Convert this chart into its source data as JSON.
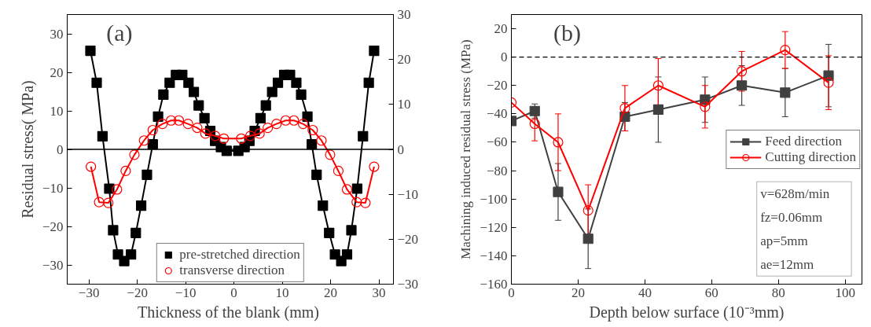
{
  "chart_data": [
    {
      "type": "line",
      "xlabel": "Thickness  of the blank (mm)",
      "ylabel": "Residual stress( MPa)",
      "xlim": [
        -34.5,
        33
      ],
      "xticks": [
        -30,
        -20,
        -10,
        0,
        10,
        20,
        30
      ],
      "ylim": [
        -35,
        35
      ],
      "yticks": [
        -30,
        -20,
        -10,
        0,
        10,
        20,
        30
      ],
      "y2lim": [
        -30,
        30
      ],
      "y2ticks": [
        -30,
        -20,
        -10,
        0,
        10,
        20,
        30
      ],
      "grid": false,
      "legend": "bottom",
      "annotations": [
        "(a)"
      ],
      "ref_lines": [
        {
          "axis": "y",
          "value": 0,
          "color": "#000000",
          "line_style": "solid"
        }
      ],
      "series": [
        {
          "name": "pre-stretched direction",
          "color": "#000000",
          "marker": "square",
          "line_style": "solid",
          "x": [
            -29.7,
            -28.4,
            -27.2,
            -25.8,
            -25.0,
            -24.0,
            -22.7,
            -21.3,
            -20.3,
            -19.2,
            -18.0,
            -16.8,
            -15.7,
            -14.6,
            -13.3,
            -12.0,
            -10.7,
            -9.4,
            -8.3,
            -7.3,
            -6.1,
            -4.9,
            -3.9,
            -2.7,
            -1.5,
            0.9,
            2.2,
            3.2,
            4.3,
            5.5,
            6.6,
            7.9,
            9.1,
            10.4,
            11.6,
            12.9,
            13.9,
            15.2,
            16.1,
            17.1,
            18.4,
            19.7,
            20.9,
            22.2,
            23.4,
            24.3,
            25.5,
            26.7,
            27.9,
            29.0
          ],
          "values": [
            25.6,
            17.3,
            3.4,
            -10.2,
            -21.0,
            -27.3,
            -29.0,
            -27.3,
            -21.7,
            -14.6,
            -6.6,
            1.3,
            8.5,
            14.2,
            17.3,
            19.3,
            19.3,
            17.3,
            14.9,
            11.4,
            8.1,
            4.8,
            2.2,
            0.6,
            -0.4,
            -0.4,
            0.6,
            2.2,
            4.8,
            8.1,
            11.4,
            14.9,
            17.3,
            19.3,
            19.3,
            17.3,
            14.2,
            8.5,
            1.3,
            -6.6,
            -14.6,
            -21.7,
            -27.3,
            -29.0,
            -27.3,
            -21.0,
            -10.2,
            3.4,
            17.3,
            25.6
          ]
        },
        {
          "name": "transverse direction",
          "color": "#ff0000",
          "marker": "circle",
          "line_style": "solid",
          "x": [
            -29.6,
            -27.9,
            -26.0,
            -24.2,
            -22.4,
            -20.6,
            -18.6,
            -16.8,
            -14.8,
            -13.0,
            -11.4,
            -9.5,
            -7.6,
            -5.9,
            -3.9,
            -2.1,
            1.5,
            3.4,
            5.3,
            7.0,
            8.8,
            10.7,
            12.4,
            14.3,
            16.3,
            18.1,
            19.9,
            21.6,
            23.4,
            25.4,
            27.2,
            29.0
          ],
          "values": [
            -4.5,
            -13.7,
            -13.9,
            -10.4,
            -5.6,
            -1.4,
            2.3,
            5.0,
            6.6,
            7.5,
            7.5,
            6.6,
            5.6,
            4.1,
            3.5,
            2.8,
            2.8,
            3.5,
            4.1,
            5.6,
            6.6,
            7.5,
            7.5,
            6.6,
            5.0,
            2.3,
            -1.4,
            -5.6,
            -10.4,
            -13.7,
            -13.9,
            -4.5
          ]
        }
      ]
    },
    {
      "type": "line",
      "xlabel": "Depth below surface (10⁻³mm)",
      "ylabel": "Machining induced residual stress (MPa)",
      "xlim": [
        0,
        105
      ],
      "xticks": [
        0,
        20,
        40,
        60,
        80,
        100
      ],
      "ylim": [
        -160,
        30
      ],
      "yticks": [
        -160,
        -140,
        -120,
        -100,
        -80,
        -60,
        -40,
        -20,
        0,
        20
      ],
      "grid": false,
      "legend": "right",
      "annotations": [
        "(b)",
        "v=628m/min",
        "fz=0.06mm",
        "ap=5mm",
        "ae=12mm"
      ],
      "ref_lines": [
        {
          "axis": "y",
          "value": 0,
          "color": "#000000",
          "line_style": "dashed"
        }
      ],
      "x": [
        0,
        7,
        14,
        23,
        34,
        44,
        58,
        69,
        82,
        95
      ],
      "series": [
        {
          "name": "Feed direction",
          "color": "#404040",
          "marker": "square",
          "line_style": "solid",
          "values": [
            -45,
            -38,
            -95,
            -128,
            -42,
            -37,
            -30,
            -20,
            -25,
            -13
          ],
          "errors": [
            null,
            5,
            20,
            21,
            10,
            23,
            16,
            14,
            17,
            22
          ]
        },
        {
          "name": "Cutting direction",
          "color": "#ff0000",
          "marker": "circle",
          "line_style": "solid",
          "values": [
            -32,
            -47,
            -60,
            -108,
            -36,
            -20,
            -35,
            -10,
            5,
            -18
          ],
          "errors": [
            null,
            12,
            20,
            18,
            16,
            19,
            15,
            14,
            13,
            19
          ]
        }
      ]
    }
  ]
}
